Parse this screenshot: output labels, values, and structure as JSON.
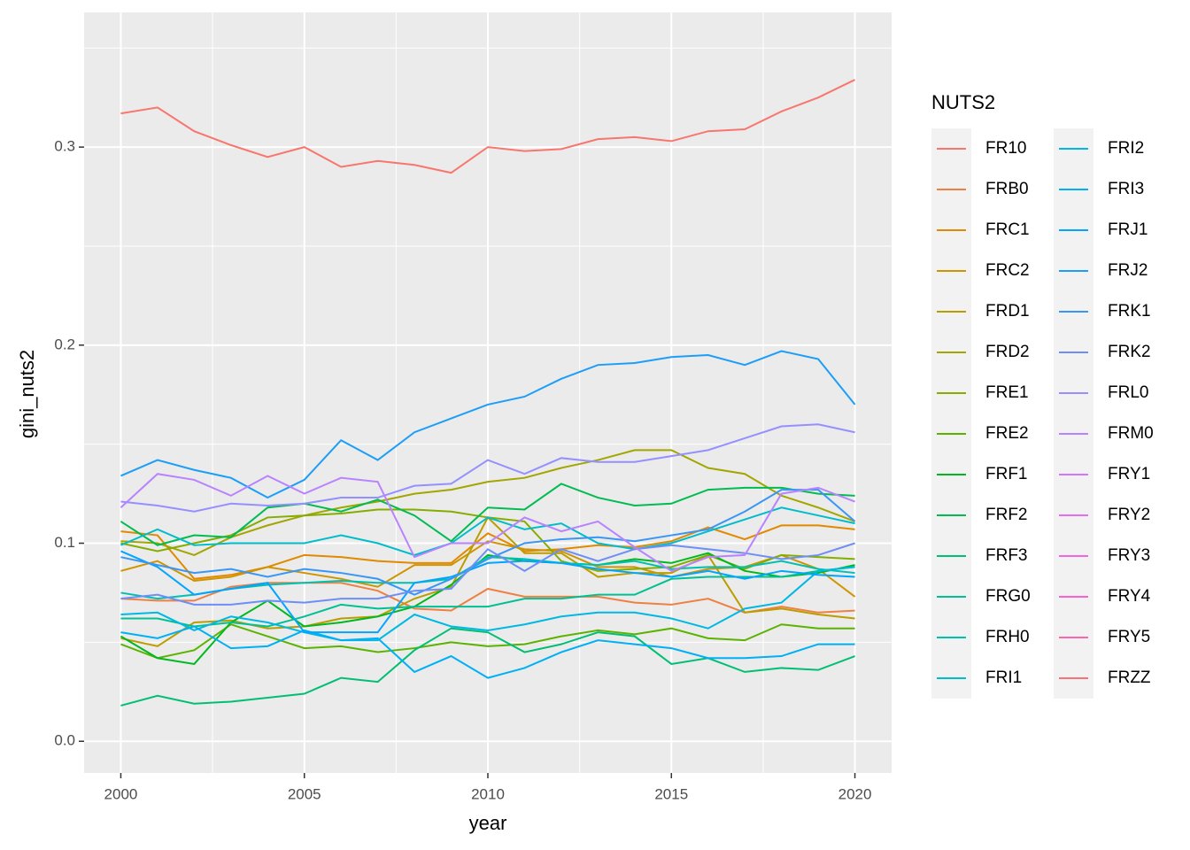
{
  "chart_data": {
    "type": "line",
    "x_label": "year",
    "y_label": "gini_nuts2",
    "legend_title": "NUTS2",
    "legend": "right",
    "x": [
      2000,
      2001,
      2002,
      2003,
      2004,
      2005,
      2006,
      2007,
      2008,
      2009,
      2010,
      2011,
      2012,
      2013,
      2014,
      2015,
      2016,
      2017,
      2018,
      2019,
      2020
    ],
    "xlim": [
      1999,
      2021
    ],
    "xticks": [
      2000,
      2005,
      2010,
      2015,
      2020
    ],
    "x_minor_ticks": [
      2002.5,
      2007.5,
      2012.5,
      2017.5
    ],
    "ylim": [
      -0.016,
      0.368
    ],
    "yticks": [
      {
        "value": 0,
        "label": "0.0"
      },
      0.1,
      0.2,
      0.3
    ],
    "y_minor_ticks": [
      0.05,
      0.15,
      0.25,
      0.35
    ],
    "grid": true,
    "series": [
      {
        "name": "FR10",
        "color": "#F8766D",
        "values": [
          0.317,
          0.32,
          0.308,
          0.301,
          0.295,
          0.3,
          0.29,
          0.293,
          0.291,
          0.287,
          0.3,
          0.298,
          0.299,
          0.304,
          0.305,
          0.303,
          0.308,
          0.309,
          0.318,
          0.325,
          0.334
        ]
      },
      {
        "name": "FRB0",
        "color": "#EE8043",
        "values": [
          0.072,
          0.071,
          0.071,
          0.078,
          0.08,
          0.08,
          0.08,
          0.076,
          0.067,
          0.066,
          0.077,
          0.073,
          0.073,
          0.073,
          0.07,
          0.069,
          0.072,
          0.065,
          0.068,
          0.065,
          0.066
        ]
      },
      {
        "name": "FRC1",
        "color": "#E18A00",
        "values": [
          0.106,
          0.104,
          0.082,
          0.084,
          0.088,
          0.094,
          0.093,
          0.091,
          0.09,
          0.09,
          0.105,
          0.096,
          0.097,
          0.099,
          0.098,
          0.101,
          0.108,
          0.102,
          0.109,
          0.109,
          0.107
        ]
      },
      {
        "name": "FRC2",
        "color": "#D09400",
        "values": [
          0.086,
          0.091,
          0.081,
          0.083,
          0.088,
          0.085,
          0.082,
          0.078,
          0.089,
          0.089,
          0.101,
          0.097,
          0.096,
          0.088,
          0.088,
          0.083,
          0.087,
          0.088,
          0.094,
          0.087,
          0.073
        ]
      },
      {
        "name": "FRD1",
        "color": "#BC9D00",
        "values": [
          0.052,
          0.048,
          0.06,
          0.061,
          0.057,
          0.058,
          0.062,
          0.063,
          0.072,
          0.078,
          0.113,
          0.095,
          0.095,
          0.083,
          0.085,
          0.085,
          0.094,
          0.065,
          0.067,
          0.064,
          0.062
        ]
      },
      {
        "name": "FRD2",
        "color": "#A3A500",
        "values": [
          0.101,
          0.1,
          0.094,
          0.103,
          0.109,
          0.114,
          0.118,
          0.121,
          0.125,
          0.127,
          0.131,
          0.133,
          0.138,
          0.142,
          0.147,
          0.147,
          0.138,
          0.135,
          0.124,
          0.118,
          0.111
        ]
      },
      {
        "name": "FRE1",
        "color": "#85AD00",
        "values": [
          0.1,
          0.096,
          0.1,
          0.104,
          0.113,
          0.114,
          0.115,
          0.117,
          0.117,
          0.116,
          0.113,
          0.111,
          0.091,
          0.086,
          0.087,
          0.088,
          0.094,
          0.087,
          0.094,
          0.093,
          0.092
        ]
      },
      {
        "name": "FRE2",
        "color": "#5BB300",
        "values": [
          0.049,
          0.042,
          0.046,
          0.059,
          0.053,
          0.047,
          0.048,
          0.045,
          0.047,
          0.05,
          0.048,
          0.049,
          0.053,
          0.056,
          0.054,
          0.057,
          0.052,
          0.051,
          0.059,
          0.057,
          0.057
        ]
      },
      {
        "name": "FRF1",
        "color": "#00B81F",
        "values": [
          0.053,
          0.042,
          0.039,
          0.06,
          0.071,
          0.058,
          0.06,
          0.063,
          0.068,
          0.079,
          0.094,
          0.091,
          0.09,
          0.089,
          0.092,
          0.09,
          0.095,
          0.086,
          0.083,
          0.085,
          0.089
        ]
      },
      {
        "name": "FRF2",
        "color": "#00BC51",
        "values": [
          0.111,
          0.099,
          0.104,
          0.103,
          0.118,
          0.12,
          0.116,
          0.122,
          0.114,
          0.101,
          0.118,
          0.117,
          0.13,
          0.123,
          0.119,
          0.12,
          0.127,
          0.128,
          0.128,
          0.125,
          0.124
        ]
      },
      {
        "name": "FRF3",
        "color": "#00BF74",
        "values": [
          0.018,
          0.023,
          0.019,
          0.02,
          0.022,
          0.024,
          0.032,
          0.03,
          0.046,
          0.057,
          0.055,
          0.045,
          0.049,
          0.055,
          0.053,
          0.039,
          0.042,
          0.035,
          0.037,
          0.036,
          0.043
        ]
      },
      {
        "name": "FRG0",
        "color": "#00C094",
        "values": [
          0.062,
          0.062,
          0.058,
          0.06,
          0.058,
          0.063,
          0.069,
          0.067,
          0.068,
          0.068,
          0.068,
          0.072,
          0.072,
          0.074,
          0.074,
          0.082,
          0.083,
          0.083,
          0.083,
          0.086,
          0.088
        ]
      },
      {
        "name": "FRH0",
        "color": "#00C0B2",
        "values": [
          0.075,
          0.072,
          0.074,
          0.077,
          0.079,
          0.08,
          0.081,
          0.08,
          0.08,
          0.082,
          0.093,
          0.092,
          0.09,
          0.089,
          0.091,
          0.087,
          0.088,
          0.088,
          0.091,
          0.087,
          0.085
        ]
      },
      {
        "name": "FRI1",
        "color": "#00BDCC",
        "values": [
          0.099,
          0.107,
          0.099,
          0.1,
          0.1,
          0.1,
          0.104,
          0.1,
          0.094,
          0.1,
          0.113,
          0.107,
          0.11,
          0.1,
          0.097,
          0.1,
          0.106,
          0.112,
          0.118,
          0.114,
          0.11
        ]
      },
      {
        "name": "FRI2",
        "color": "#00B8E4",
        "values": [
          0.064,
          0.065,
          0.056,
          0.063,
          0.06,
          0.055,
          0.051,
          0.051,
          0.064,
          0.058,
          0.056,
          0.059,
          0.063,
          0.065,
          0.065,
          0.062,
          0.057,
          0.067,
          0.07,
          0.086,
          0.088
        ]
      },
      {
        "name": "FRI3",
        "color": "#00B0F6",
        "values": [
          0.055,
          0.052,
          0.058,
          0.047,
          0.048,
          0.056,
          0.051,
          0.052,
          0.035,
          0.043,
          0.032,
          0.037,
          0.045,
          0.051,
          0.049,
          0.047,
          0.042,
          0.042,
          0.043,
          0.049,
          0.049
        ]
      },
      {
        "name": "FRJ1",
        "color": "#00A5FF",
        "values": [
          0.096,
          0.088,
          0.074,
          0.077,
          0.08,
          0.055,
          0.055,
          0.055,
          0.08,
          0.083,
          0.09,
          0.091,
          0.09,
          0.087,
          0.085,
          0.083,
          0.086,
          0.082,
          0.086,
          0.084,
          0.083
        ]
      },
      {
        "name": "FRJ2",
        "color": "#1C9EF8",
        "values": [
          0.134,
          0.142,
          0.137,
          0.133,
          0.123,
          0.132,
          0.152,
          0.142,
          0.156,
          0.163,
          0.17,
          0.174,
          0.183,
          0.19,
          0.191,
          0.194,
          0.195,
          0.19,
          0.197,
          0.193,
          0.17
        ]
      },
      {
        "name": "FRK1",
        "color": "#3A96F5",
        "values": [
          0.093,
          0.089,
          0.085,
          0.087,
          0.083,
          0.087,
          0.085,
          0.082,
          0.074,
          0.082,
          0.092,
          0.1,
          0.102,
          0.103,
          0.101,
          0.104,
          0.107,
          0.116,
          0.127,
          0.127,
          0.111
        ]
      },
      {
        "name": "FRK2",
        "color": "#6E8EF7",
        "values": [
          0.072,
          0.074,
          0.069,
          0.069,
          0.071,
          0.07,
          0.072,
          0.072,
          0.076,
          0.077,
          0.097,
          0.086,
          0.097,
          0.091,
          0.097,
          0.099,
          0.097,
          0.095,
          0.092,
          0.094,
          0.1
        ]
      },
      {
        "name": "FRL0",
        "color": "#9590FF",
        "values": [
          0.121,
          0.119,
          0.116,
          0.12,
          0.119,
          0.12,
          0.123,
          0.123,
          0.129,
          0.13,
          0.142,
          0.135,
          0.143,
          0.141,
          0.141,
          0.144,
          0.147,
          0.153,
          0.159,
          0.16,
          0.156
        ]
      },
      {
        "name": "FRM0",
        "color": "#B983FF",
        "values": [
          0.118,
          0.135,
          0.132,
          0.124,
          0.134,
          0.125,
          0.133,
          0.131,
          0.093,
          0.1,
          0.1,
          0.113,
          0.106,
          0.111,
          0.098,
          0.086,
          0.093,
          0.094,
          0.125,
          0.128,
          0.121
        ]
      },
      {
        "name": "FRY1",
        "color": "#D376FF",
        "values": [
          null,
          null,
          null,
          null,
          null,
          null,
          null,
          null,
          null,
          null,
          null,
          null,
          null,
          null,
          null,
          null,
          null,
          null,
          null,
          null,
          null
        ]
      },
      {
        "name": "FRY2",
        "color": "#E76BF3",
        "values": [
          null,
          null,
          null,
          null,
          null,
          null,
          null,
          null,
          null,
          null,
          null,
          null,
          null,
          null,
          null,
          null,
          null,
          null,
          null,
          null,
          null
        ]
      },
      {
        "name": "FRY3",
        "color": "#F564E3",
        "values": [
          null,
          null,
          null,
          null,
          null,
          null,
          null,
          null,
          null,
          null,
          null,
          null,
          null,
          null,
          null,
          null,
          null,
          null,
          null,
          null,
          null
        ]
      },
      {
        "name": "FRY4",
        "color": "#FD61D1",
        "values": [
          null,
          null,
          null,
          null,
          null,
          null,
          null,
          null,
          null,
          null,
          null,
          null,
          null,
          null,
          null,
          null,
          null,
          null,
          null,
          null,
          null
        ]
      },
      {
        "name": "FRY5",
        "color": "#FF64B0",
        "values": [
          null,
          null,
          null,
          null,
          null,
          null,
          null,
          null,
          null,
          null,
          null,
          null,
          null,
          null,
          null,
          null,
          null,
          null,
          null,
          null,
          null
        ]
      },
      {
        "name": "FRZZ",
        "color": "#F8717B",
        "values": [
          null,
          null,
          null,
          null,
          null,
          null,
          null,
          null,
          null,
          null,
          null,
          null,
          null,
          null,
          null,
          null,
          null,
          null,
          null,
          null,
          null
        ]
      }
    ]
  }
}
